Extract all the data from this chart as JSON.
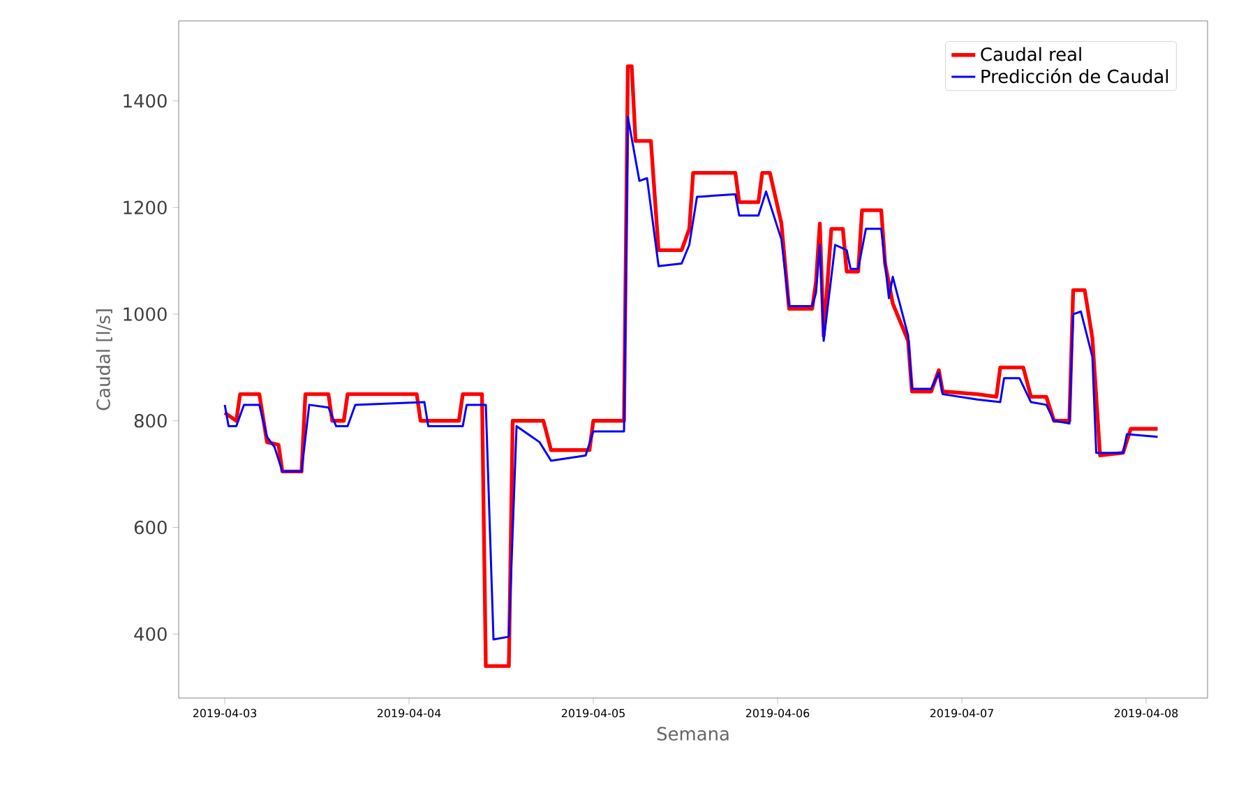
{
  "chart_data": {
    "type": "line",
    "xlabel": "Semana",
    "ylabel": "Caudal [l/s]",
    "xlim": [
      "2019-04-02T18:00",
      "2019-04-08T08:00"
    ],
    "ylim": [
      280,
      1550
    ],
    "xticks": [
      "2019-04-03",
      "2019-04-04",
      "2019-04-05",
      "2019-04-06",
      "2019-04-07",
      "2019-04-08"
    ],
    "yticks": [
      400,
      600,
      800,
      1000,
      1200,
      1400
    ],
    "legend": "top right",
    "series": [
      {
        "name": "Caudal real",
        "color": "#ff0000",
        "x": [
          "2019-04-03T00:00",
          "2019-04-03T01:30",
          "2019-04-03T02:00",
          "2019-04-03T04:30",
          "2019-04-03T05:30",
          "2019-04-03T07:00",
          "2019-04-03T07:30",
          "2019-04-03T10:00",
          "2019-04-03T10:30",
          "2019-04-03T13:30",
          "2019-04-03T14:00",
          "2019-04-03T15:30",
          "2019-04-03T16:00",
          "2019-04-04T01:00",
          "2019-04-04T01:30",
          "2019-04-04T06:30",
          "2019-04-04T07:00",
          "2019-04-04T09:30",
          "2019-04-04T10:00",
          "2019-04-04T13:00",
          "2019-04-04T13:30",
          "2019-04-04T17:30",
          "2019-04-04T18:30",
          "2019-04-04T23:30",
          "2019-04-05T00:00",
          "2019-04-05T04:00",
          "2019-04-05T04:30",
          "2019-04-05T05:00",
          "2019-04-05T05:30",
          "2019-04-05T07:30",
          "2019-04-05T08:30",
          "2019-04-05T11:30",
          "2019-04-05T12:30",
          "2019-04-05T13:00",
          "2019-04-05T18:30",
          "2019-04-05T19:00",
          "2019-04-05T21:30",
          "2019-04-05T22:00",
          "2019-04-05T23:00",
          "2019-04-06T00:30",
          "2019-04-06T01:30",
          "2019-04-06T04:30",
          "2019-04-06T05:00",
          "2019-04-06T05:30",
          "2019-04-06T06:00",
          "2019-04-06T07:00",
          "2019-04-06T08:30",
          "2019-04-06T09:00",
          "2019-04-06T10:30",
          "2019-04-06T11:00",
          "2019-04-06T13:30",
          "2019-04-06T14:00",
          "2019-04-06T15:00",
          "2019-04-06T17:00",
          "2019-04-06T17:30",
          "2019-04-06T20:00",
          "2019-04-06T21:00",
          "2019-04-06T21:30",
          "2019-04-07T02:00",
          "2019-04-07T04:30",
          "2019-04-07T05:00",
          "2019-04-07T08:00",
          "2019-04-07T09:00",
          "2019-04-07T11:00",
          "2019-04-07T12:00",
          "2019-04-07T14:00",
          "2019-04-07T14:30",
          "2019-04-07T16:00",
          "2019-04-07T17:00",
          "2019-04-07T18:00",
          "2019-04-07T21:00",
          "2019-04-07T22:00",
          "2019-04-08T01:30"
        ],
        "values": [
          815,
          800,
          850,
          850,
          760,
          755,
          705,
          705,
          850,
          850,
          800,
          800,
          850,
          850,
          800,
          800,
          850,
          850,
          340,
          340,
          800,
          800,
          745,
          745,
          800,
          800,
          1465,
          1465,
          1325,
          1325,
          1120,
          1120,
          1160,
          1265,
          1265,
          1210,
          1210,
          1265,
          1265,
          1170,
          1010,
          1010,
          1060,
          1170,
          960,
          1160,
          1160,
          1080,
          1080,
          1195,
          1195,
          1095,
          1020,
          950,
          855,
          855,
          895,
          855,
          850,
          845,
          900,
          900,
          845,
          845,
          800,
          800,
          1045,
          1045,
          955,
          735,
          740,
          785,
          785
        ]
      },
      {
        "name": "Predicción de Caudal",
        "color": "#0000ff",
        "x": [
          "2019-04-03T00:00",
          "2019-04-03T00:30",
          "2019-04-03T01:30",
          "2019-04-03T02:30",
          "2019-04-03T04:30",
          "2019-04-03T05:30",
          "2019-04-03T06:30",
          "2019-04-03T07:30",
          "2019-04-03T10:00",
          "2019-04-03T11:00",
          "2019-04-03T13:30",
          "2019-04-03T14:30",
          "2019-04-03T16:00",
          "2019-04-03T17:00",
          "2019-04-04T02:00",
          "2019-04-04T02:30",
          "2019-04-04T07:00",
          "2019-04-04T07:30",
          "2019-04-04T10:00",
          "2019-04-04T11:00",
          "2019-04-04T13:00",
          "2019-04-04T14:00",
          "2019-04-04T17:00",
          "2019-04-04T18:30",
          "2019-04-04T23:00",
          "2019-04-05T00:00",
          "2019-04-05T04:00",
          "2019-04-05T04:30",
          "2019-04-05T05:30",
          "2019-04-05T06:00",
          "2019-04-05T07:00",
          "2019-04-05T08:30",
          "2019-04-05T11:30",
          "2019-04-05T12:30",
          "2019-04-05T13:30",
          "2019-04-05T18:30",
          "2019-04-05T19:00",
          "2019-04-05T21:30",
          "2019-04-05T22:30",
          "2019-04-06T00:30",
          "2019-04-06T01:30",
          "2019-04-06T04:30",
          "2019-04-06T05:00",
          "2019-04-06T05:30",
          "2019-04-06T06:00",
          "2019-04-06T07:30",
          "2019-04-06T09:00",
          "2019-04-06T09:30",
          "2019-04-06T10:30",
          "2019-04-06T11:30",
          "2019-04-06T13:30",
          "2019-04-06T14:30",
          "2019-04-06T15:00",
          "2019-04-06T17:00",
          "2019-04-06T17:30",
          "2019-04-06T20:00",
          "2019-04-06T21:00",
          "2019-04-06T21:30",
          "2019-04-07T02:00",
          "2019-04-07T05:00",
          "2019-04-07T05:30",
          "2019-04-07T07:30",
          "2019-04-07T09:00",
          "2019-04-07T11:00",
          "2019-04-07T12:00",
          "2019-04-07T14:00",
          "2019-04-07T14:30",
          "2019-04-07T15:30",
          "2019-04-07T17:00",
          "2019-04-07T17:30",
          "2019-04-07T21:00",
          "2019-04-07T21:30",
          "2019-04-08T01:30"
        ],
        "values": [
          830,
          790,
          790,
          830,
          830,
          770,
          750,
          705,
          705,
          830,
          825,
          790,
          790,
          830,
          835,
          790,
          790,
          830,
          830,
          390,
          395,
          790,
          760,
          725,
          735,
          780,
          780,
          1370,
          1290,
          1250,
          1255,
          1090,
          1095,
          1130,
          1220,
          1225,
          1185,
          1185,
          1230,
          1140,
          1015,
          1015,
          1040,
          1130,
          950,
          1130,
          1120,
          1085,
          1085,
          1160,
          1160,
          1030,
          1070,
          960,
          860,
          860,
          890,
          850,
          840,
          835,
          880,
          880,
          835,
          830,
          800,
          795,
          1000,
          1005,
          920,
          740,
          740,
          775,
          770
        ]
      }
    ]
  }
}
